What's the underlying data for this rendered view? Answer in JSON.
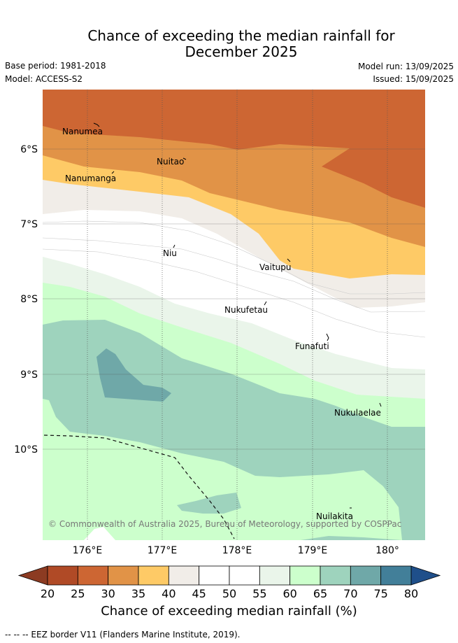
{
  "title_line1": "Chance of exceeding the median rainfall for",
  "title_line2": "December 2025",
  "base_period": "Base period: 1981-2018",
  "model": "Model: ACCESS-S2",
  "model_run": "Model run: 13/09/2025",
  "issued": "Issued: 15/09/2025",
  "copyright": "© Commonwealth of Australia 2025, Bureau of Meteorology, supported by COSPPac",
  "colorbar_label": "Chance of exceeding median rainfall (%)",
  "footnote": "--  --  -- EEZ border V11 (Flanders Marine Institute, 2019).",
  "map": {
    "lat_labels": [
      "6°S",
      "7°S",
      "8°S",
      "9°S",
      "10°S"
    ],
    "lon_labels": [
      "176°E",
      "177°E",
      "178°E",
      "179°E",
      "180°"
    ],
    "places": [
      "Nanumea",
      "Nuitao",
      "Nanumanga",
      "Niu",
      "Vaitupu",
      "Nukufetau",
      "Funafuti",
      "Nukulaelae",
      "Nuilakita"
    ]
  },
  "colorbar": {
    "ticks": [
      "20",
      "25",
      "30",
      "35",
      "40",
      "45",
      "50",
      "55",
      "60",
      "65",
      "70",
      "75",
      "80"
    ],
    "colors": [
      "#b04a26",
      "#cd6633",
      "#e19347",
      "#feca66",
      "#f1ede8",
      "#ffffff",
      "#ffffff",
      "#eaf5ea",
      "#ccffcc",
      "#9ed3bd",
      "#6fa8a8",
      "#427f99"
    ],
    "under_color": "#8c3b22",
    "over_color": "#1f4f8a"
  }
}
